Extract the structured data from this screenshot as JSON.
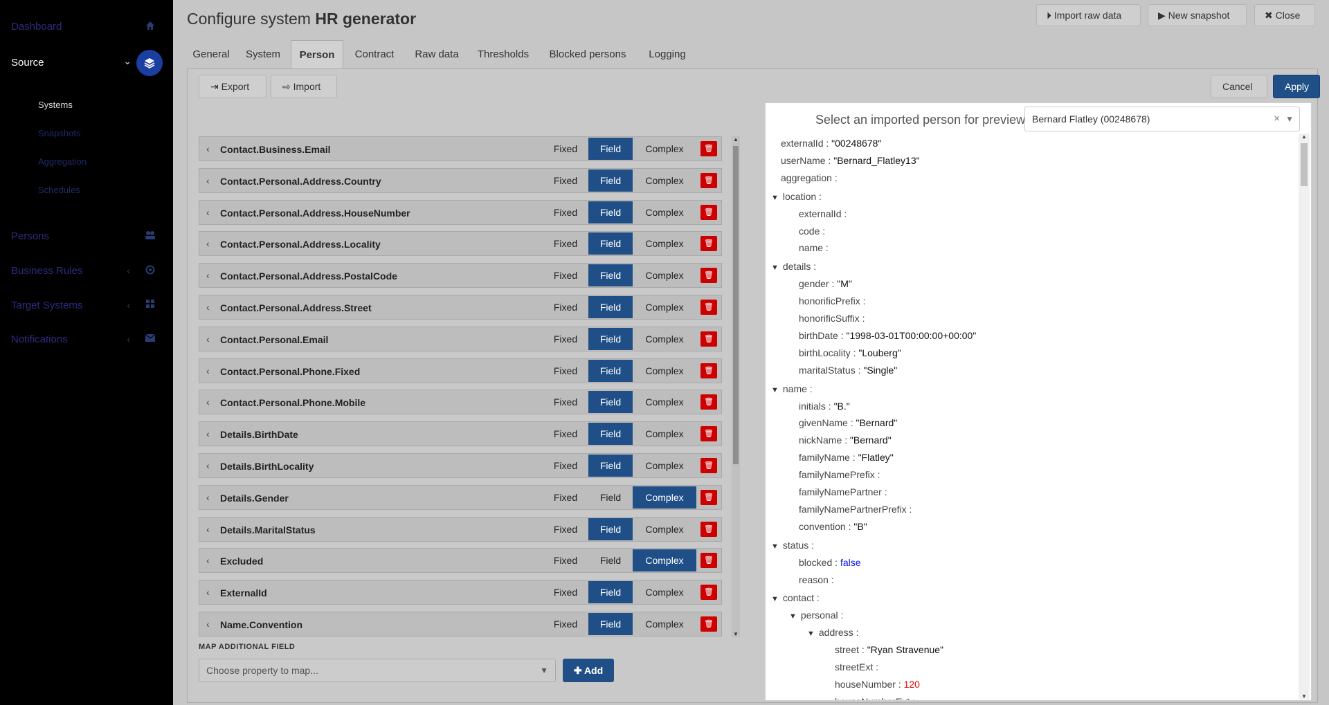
{
  "sidebar": {
    "items": [
      {
        "label": "Dashboard",
        "icon": "home-icon"
      },
      {
        "label": "Source",
        "icon": "layers-icon"
      },
      {
        "label": "Persons",
        "icon": "users-icon"
      },
      {
        "label": "Business Rules",
        "icon": "rules-icon"
      },
      {
        "label": "Target Systems",
        "icon": "grid-icon"
      },
      {
        "label": "Notifications",
        "icon": "envelope-icon"
      }
    ],
    "sub_items": [
      "Systems",
      "Snapshots",
      "Aggregation",
      "Schedules"
    ]
  },
  "header": {
    "title_prefix": "Configure system",
    "title_name": "HR generator",
    "import_label": "Import raw data",
    "snapshot_label": "New snapshot",
    "close_label": "Close"
  },
  "tabs": [
    "General",
    "System",
    "Person",
    "Contract",
    "Raw data",
    "Thresholds",
    "Blocked persons",
    "Logging"
  ],
  "toolbar": {
    "export_label": "Export",
    "import_label": "Import",
    "cancel_label": "Cancel",
    "apply_label": "Apply"
  },
  "segments": {
    "fixed": "Fixed",
    "field": "Field",
    "complex": "Complex"
  },
  "fields": [
    {
      "name": "Contact.Business.Email",
      "mode": "field"
    },
    {
      "name": "Contact.Personal.Address.Country",
      "mode": "field"
    },
    {
      "name": "Contact.Personal.Address.HouseNumber",
      "mode": "field"
    },
    {
      "name": "Contact.Personal.Address.Locality",
      "mode": "field"
    },
    {
      "name": "Contact.Personal.Address.PostalCode",
      "mode": "field"
    },
    {
      "name": "Contact.Personal.Address.Street",
      "mode": "field"
    },
    {
      "name": "Contact.Personal.Email",
      "mode": "field"
    },
    {
      "name": "Contact.Personal.Phone.Fixed",
      "mode": "field"
    },
    {
      "name": "Contact.Personal.Phone.Mobile",
      "mode": "field"
    },
    {
      "name": "Details.BirthDate",
      "mode": "field"
    },
    {
      "name": "Details.BirthLocality",
      "mode": "field"
    },
    {
      "name": "Details.Gender",
      "mode": "complex"
    },
    {
      "name": "Details.MaritalStatus",
      "mode": "field"
    },
    {
      "name": "Excluded",
      "mode": "complex"
    },
    {
      "name": "ExternalId",
      "mode": "field"
    },
    {
      "name": "Name.Convention",
      "mode": "field"
    }
  ],
  "map": {
    "label": "MAP ADDITIONAL FIELD",
    "placeholder": "Choose property to map...",
    "add_label": "Add"
  },
  "preview": {
    "label": "Select an imported person for preview",
    "selected": "Bernard Flatley (00248678)",
    "tree": [
      {
        "k": "externalId",
        "v": "\"00248678\"",
        "l": 0
      },
      {
        "k": "userName",
        "v": "\"Bernard_Flatley13\"",
        "l": 0
      },
      {
        "k": "aggregation",
        "v": "",
        "l": 0
      },
      {
        "k": "location",
        "v": "",
        "l": 0,
        "open": true
      },
      {
        "k": "externalId",
        "v": "",
        "l": 1
      },
      {
        "k": "code",
        "v": "",
        "l": 1
      },
      {
        "k": "name",
        "v": "",
        "l": 1
      },
      {
        "k": "details",
        "v": "",
        "l": 0,
        "open": true
      },
      {
        "k": "gender",
        "v": "\"M\"",
        "l": 1
      },
      {
        "k": "honorificPrefix",
        "v": "",
        "l": 1
      },
      {
        "k": "honorificSuffix",
        "v": "",
        "l": 1
      },
      {
        "k": "birthDate",
        "v": "\"1998-03-01T00:00:00+00:00\"",
        "l": 1
      },
      {
        "k": "birthLocality",
        "v": "\"Louberg\"",
        "l": 1
      },
      {
        "k": "maritalStatus",
        "v": "\"Single\"",
        "l": 1
      },
      {
        "k": "name",
        "v": "",
        "l": 0,
        "open": true
      },
      {
        "k": "initials",
        "v": "\"B.\"",
        "l": 1
      },
      {
        "k": "givenName",
        "v": "\"Bernard\"",
        "l": 1
      },
      {
        "k": "nickName",
        "v": "\"Bernard\"",
        "l": 1
      },
      {
        "k": "familyName",
        "v": "\"Flatley\"",
        "l": 1
      },
      {
        "k": "familyNamePrefix",
        "v": "",
        "l": 1
      },
      {
        "k": "familyNamePartner",
        "v": "",
        "l": 1
      },
      {
        "k": "familyNamePartnerPrefix",
        "v": "",
        "l": 1
      },
      {
        "k": "convention",
        "v": "\"B\"",
        "l": 1
      },
      {
        "k": "status",
        "v": "",
        "l": 0,
        "open": true
      },
      {
        "k": "blocked",
        "v": "false",
        "l": 1,
        "t": "bool"
      },
      {
        "k": "reason",
        "v": "",
        "l": 1
      },
      {
        "k": "contact",
        "v": "",
        "l": 0,
        "open": true
      },
      {
        "k": "personal",
        "v": "",
        "l": 1,
        "open": true
      },
      {
        "k": "address",
        "v": "",
        "l": 2,
        "open": true
      },
      {
        "k": "street",
        "v": "\"Ryan Stravenue\"",
        "l": 3
      },
      {
        "k": "streetExt",
        "v": "",
        "l": 3
      },
      {
        "k": "houseNumber",
        "v": "120",
        "l": 3,
        "t": "num"
      },
      {
        "k": "houseNumberExt",
        "v": "",
        "l": 3
      }
    ]
  }
}
